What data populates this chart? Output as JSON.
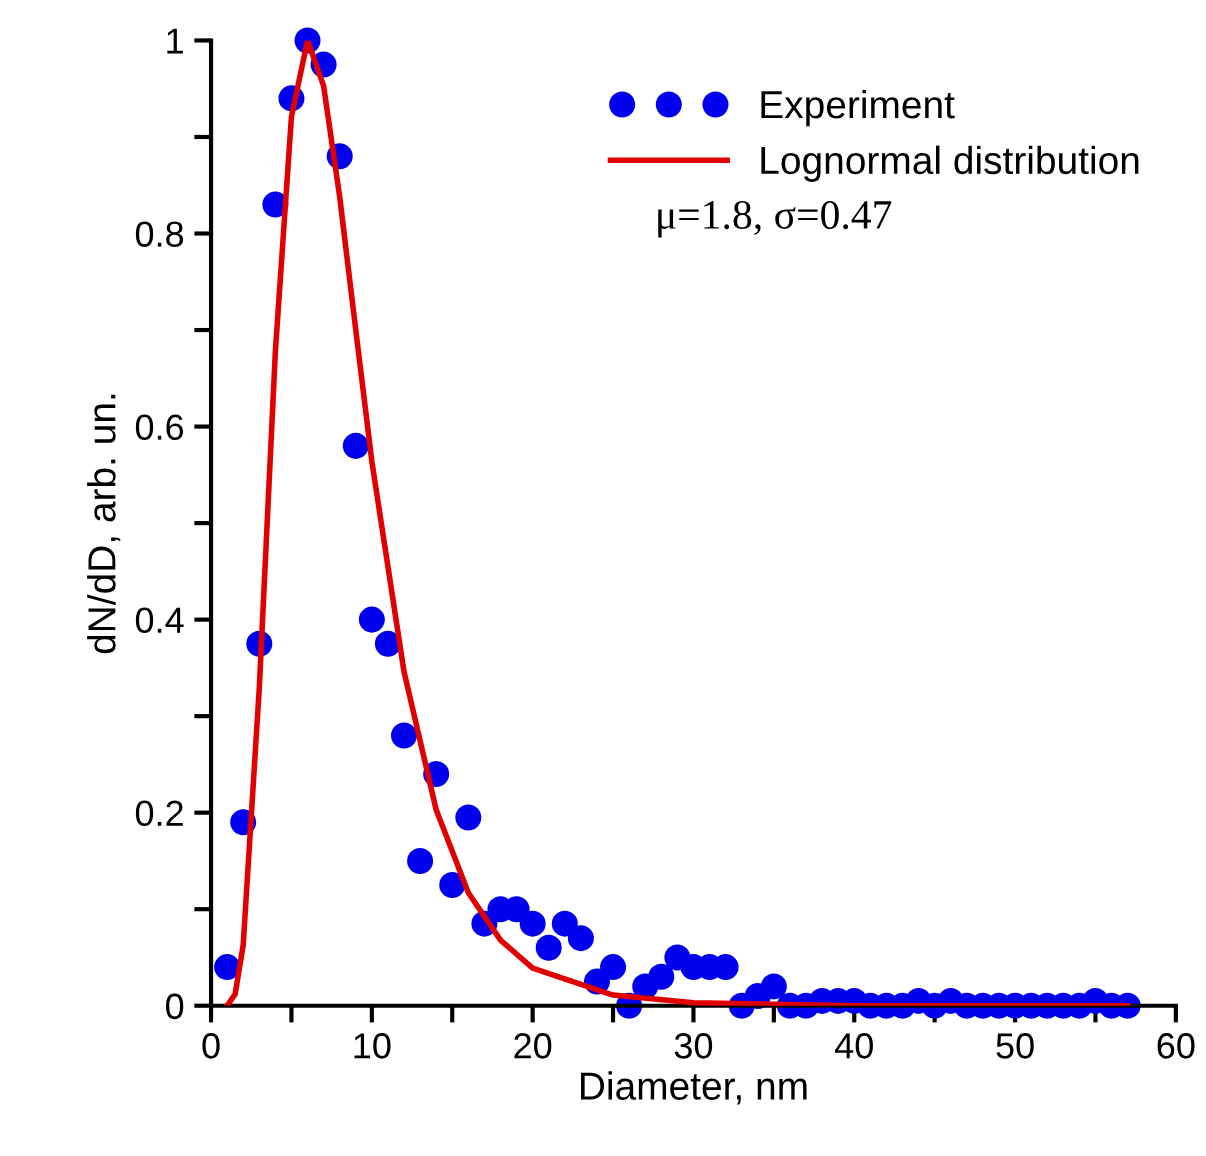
{
  "chart_data": {
    "type": "scatter",
    "xlabel": "Diameter, nm",
    "ylabel": "dN/dD, arb. un.",
    "xlim": [
      0,
      60
    ],
    "ylim": [
      0,
      1
    ],
    "xticks": [
      0,
      {
        "value": 5,
        "label": null
      },
      10,
      {
        "value": 15,
        "label": null
      },
      20,
      {
        "value": 25,
        "label": null
      },
      30,
      {
        "value": 35,
        "label": null
      },
      40,
      {
        "value": 45,
        "label": null
      },
      50,
      {
        "value": 55,
        "label": null
      },
      60
    ],
    "yticks": [
      0,
      {
        "value": 0.1,
        "label": null
      },
      0.2,
      {
        "value": 0.3,
        "label": null
      },
      0.4,
      {
        "value": 0.5,
        "label": null
      },
      0.6,
      {
        "value": 0.7,
        "label": null
      },
      0.8,
      {
        "value": 0.9,
        "label": null
      },
      1
    ],
    "series": [
      {
        "name": "Experiment",
        "color": "#0000ee",
        "marker": "circle",
        "x": [
          1,
          2,
          3,
          4,
          5,
          6,
          7,
          8,
          9,
          10,
          11,
          12,
          13,
          14,
          15,
          16,
          17,
          18,
          19,
          20,
          21,
          22,
          23,
          24,
          25,
          26,
          27,
          28,
          29,
          30,
          31,
          32,
          33,
          34,
          35,
          36,
          37,
          38,
          39,
          40,
          41,
          42,
          43,
          44,
          45,
          46,
          47,
          48,
          49,
          50,
          51,
          52,
          53,
          54,
          55,
          56,
          57
        ],
        "values": [
          0.04,
          0.19,
          0.375,
          0.83,
          0.94,
          1.0,
          0.975,
          0.88,
          0.58,
          0.4,
          0.375,
          0.28,
          0.15,
          0.24,
          0.125,
          0.195,
          0.085,
          0.1,
          0.1,
          0.085,
          0.06,
          0.085,
          0.07,
          0.025,
          0.04,
          0.0,
          0.02,
          0.03,
          0.05,
          0.04,
          0.04,
          0.04,
          0.0,
          0.01,
          0.02,
          0.0,
          0.0,
          0.005,
          0.005,
          0.005,
          0.0,
          0.0,
          0.0,
          0.005,
          0.0,
          0.005,
          0.0,
          0.0,
          0.0,
          0.0,
          0.0,
          0.0,
          0.0,
          0.0,
          0.005,
          0.0,
          0.0
        ]
      },
      {
        "name": "Lognormal distribution",
        "type": "line",
        "color": "#e00000",
        "line_style": "solid",
        "marker": "none",
        "x": [
          1,
          1.5,
          2,
          3,
          4,
          5,
          6,
          7,
          8,
          9,
          10,
          12,
          14,
          16,
          18,
          20,
          25,
          30,
          40,
          57
        ],
        "values": [
          0.0,
          0.012,
          0.063,
          0.329,
          0.678,
          0.921,
          1.0,
          0.953,
          0.838,
          0.7,
          0.564,
          0.346,
          0.203,
          0.117,
          0.068,
          0.039,
          0.011,
          0.003,
          0.0,
          0.0
        ]
      }
    ],
    "annotations": [
      "μ=1.8, σ=0.47"
    ],
    "legend": "top right",
    "grid": false
  }
}
